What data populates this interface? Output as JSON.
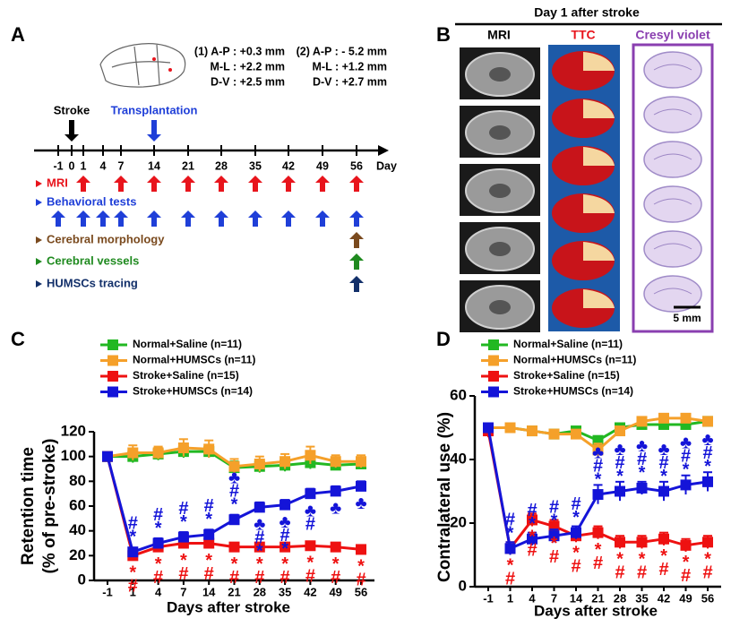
{
  "panel_a": {
    "letter": "A",
    "coordinates": [
      [
        "(1) A-P : +0.3 mm",
        "M-L : +2.2 mm",
        "D-V : +2.5 mm"
      ],
      [
        "(2) A-P : - 5.2 mm",
        "M-L : +1.2 mm",
        "D-V : +2.7 mm"
      ]
    ],
    "stroke_label": "Stroke",
    "stroke_day": 0,
    "transplant_label": "Transplantation",
    "transplant_day": 14,
    "timeline": {
      "days": [
        -1,
        0,
        1,
        4,
        7,
        14,
        21,
        28,
        35,
        42,
        49,
        56
      ],
      "unit": "Day"
    },
    "rows": [
      {
        "label": "MRI",
        "color": "#e8141c",
        "days": [
          1,
          7,
          14,
          21,
          28,
          35,
          42,
          49,
          56
        ]
      },
      {
        "label": "Behavioral tests",
        "color": "#1f3fd8",
        "days": [
          -1,
          1,
          4,
          7,
          14,
          21,
          28,
          35,
          42,
          49,
          56
        ]
      },
      {
        "label": "Cerebral morphology",
        "color": "#7a4a1e",
        "days": [
          56
        ]
      },
      {
        "label": "Cerebral vessels",
        "color": "#1f8a1f",
        "days": [
          56
        ]
      },
      {
        "label": "HUMSCs tracing",
        "color": "#13306a",
        "days": [
          56
        ]
      }
    ]
  },
  "panel_b": {
    "letter": "B",
    "title": "Day 1 after stroke",
    "columns": [
      {
        "label": "MRI",
        "color": "#000000"
      },
      {
        "label": "TTC",
        "color": "#e8141c"
      },
      {
        "label": "Cresyl violet",
        "color": "#8a3fb0"
      }
    ],
    "scale_bar": "5 mm"
  },
  "chart_data": [
    {
      "type": "line",
      "letter": "C",
      "ylabel": [
        "Retention time",
        "(% of pre-stroke)"
      ],
      "xlabel": "Days after stroke",
      "categories": [
        "-1",
        "1",
        "4",
        "7",
        "14",
        "21",
        "28",
        "35",
        "42",
        "49",
        "56"
      ],
      "ylim": [
        0,
        120
      ],
      "yticks": [
        0,
        20,
        40,
        60,
        80,
        100,
        120
      ],
      "series": [
        {
          "name": "Normal+Saline (n=11)",
          "color": "#22b822",
          "values": [
            100,
            100,
            102,
            104,
            104,
            91,
            92,
            93,
            95,
            93,
            94
          ],
          "errors": [
            2,
            5,
            5,
            5,
            5,
            5,
            5,
            5,
            5,
            4,
            4
          ],
          "sig": [
            [],
            [],
            [],
            [],
            [],
            [],
            [],
            [],
            [],
            [],
            []
          ]
        },
        {
          "name": "Normal+HUMSCs (n=11)",
          "color": "#f5a02a",
          "values": [
            100,
            103,
            103,
            107,
            106,
            92,
            94,
            96,
            101,
            96,
            96
          ],
          "errors": [
            2,
            6,
            5,
            7,
            7,
            6,
            6,
            6,
            7,
            5,
            5
          ],
          "sig": [
            [],
            [],
            [],
            [],
            [],
            [],
            [],
            [],
            [],
            [],
            []
          ]
        },
        {
          "name": "Stroke+Saline (n=15)",
          "color": "#ee1111",
          "values": [
            100,
            20,
            27,
            30,
            30,
            27,
            27,
            27,
            28,
            27,
            25
          ],
          "errors": [
            0,
            2,
            3,
            3,
            3,
            2,
            2,
            2,
            2,
            2,
            2
          ],
          "sig": [
            [],
            [
              "*",
              "#"
            ],
            [
              "*",
              "#"
            ],
            [
              "*",
              "#"
            ],
            [
              "*",
              "#"
            ],
            [
              "*",
              "#"
            ],
            [
              "*",
              "#"
            ],
            [
              "*",
              "#"
            ],
            [
              "*",
              "#"
            ],
            [
              "*",
              "#"
            ],
            [
              "*",
              "#"
            ]
          ]
        },
        {
          "name": "Stroke+HUMSCs (n=14)",
          "color": "#1414d8",
          "values": [
            100,
            23,
            30,
            35,
            37,
            49,
            59,
            61,
            70,
            72,
            76
          ],
          "errors": [
            0,
            3,
            4,
            4,
            4,
            4,
            4,
            4,
            4,
            4,
            4
          ],
          "sig": [
            [],
            [
              "#",
              "*"
            ],
            [
              "#",
              "*"
            ],
            [
              "#",
              "*"
            ],
            [
              "#",
              "*"
            ],
            [
              "♣",
              "#",
              "*"
            ],
            [
              "♣",
              "#",
              "*"
            ],
            [
              "♣",
              "#",
              "*"
            ],
            [
              "♣",
              "#"
            ],
            [
              "♣"
            ],
            [
              "♣"
            ]
          ]
        }
      ]
    },
    {
      "type": "line",
      "letter": "D",
      "ylabel": [
        "Contralateral use (%)"
      ],
      "xlabel": "Days after stroke",
      "categories": [
        "-1",
        "1",
        "4",
        "7",
        "14",
        "21",
        "28",
        "35",
        "42",
        "49",
        "56"
      ],
      "ylim": [
        0,
        60
      ],
      "yticks": [
        0,
        20,
        40,
        60
      ],
      "series": [
        {
          "name": "Normal+Saline (n=11)",
          "color": "#22b822",
          "values": [
            50,
            50,
            49,
            48,
            49,
            46,
            50,
            51,
            51,
            51,
            52
          ],
          "errors": [
            1,
            1,
            1,
            1,
            1,
            1,
            1,
            1,
            1,
            1,
            1
          ],
          "sig": [
            [],
            [],
            [],
            [],
            [],
            [],
            [],
            [],
            [],
            [],
            []
          ]
        },
        {
          "name": "Normal+HUMSCs (n=11)",
          "color": "#f5a02a",
          "values": [
            50,
            50,
            49,
            48,
            48,
            43,
            49,
            52,
            53,
            53,
            52
          ],
          "errors": [
            1,
            1,
            1,
            1,
            1,
            2,
            1,
            1,
            1,
            1,
            1
          ],
          "sig": [
            [],
            [],
            [],
            [],
            [],
            [],
            [],
            [],
            [],
            [],
            []
          ]
        },
        {
          "name": "Stroke+Saline (n=15)",
          "color": "#ee1111",
          "values": [
            49,
            12,
            21,
            19,
            16,
            17,
            14,
            14,
            15,
            13,
            14
          ],
          "errors": [
            2,
            2,
            2,
            2,
            2,
            2,
            2,
            2,
            2,
            2,
            2
          ],
          "sig": [
            [],
            [
              "*",
              "#"
            ],
            [
              "*",
              "#"
            ],
            [
              "*",
              "#"
            ],
            [
              "*",
              "#"
            ],
            [
              "*",
              "#"
            ],
            [
              "*",
              "#"
            ],
            [
              "*",
              "#"
            ],
            [
              "*",
              "#"
            ],
            [
              "*",
              "#"
            ],
            [
              "*",
              "#"
            ]
          ]
        },
        {
          "name": "Stroke+HUMSCs (n=14)",
          "color": "#1414d8",
          "values": [
            50,
            12,
            15,
            16,
            17,
            29,
            30,
            31,
            30,
            32,
            33
          ],
          "errors": [
            1,
            2,
            2,
            2,
            2,
            3,
            3,
            2,
            3,
            3,
            3
          ],
          "sig": [
            [],
            [
              "#",
              "*"
            ],
            [
              "#",
              "*"
            ],
            [
              "#",
              "*"
            ],
            [
              "#",
              "*"
            ],
            [
              "♣",
              "#",
              "*"
            ],
            [
              "♣",
              "#",
              "*"
            ],
            [
              "♣",
              "#",
              "*"
            ],
            [
              "♣",
              "#",
              "*"
            ],
            [
              "♣",
              "#",
              "*"
            ],
            [
              "♣",
              "#",
              "*"
            ]
          ]
        }
      ]
    }
  ]
}
